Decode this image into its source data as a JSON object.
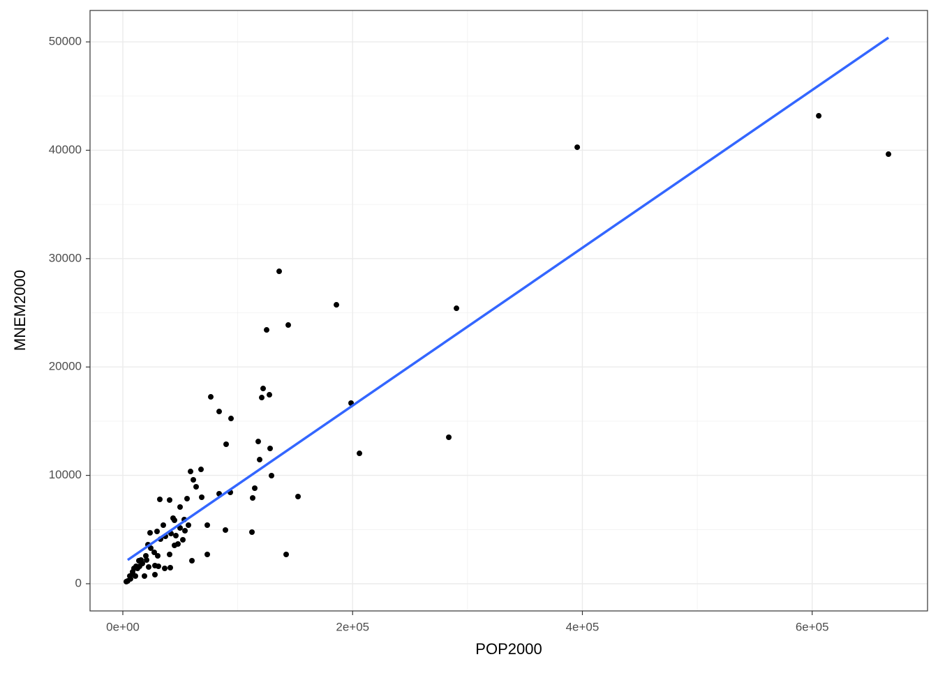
{
  "chart_data": {
    "type": "scatter",
    "xlabel": "POP2000",
    "ylabel": "MNEM2000",
    "xlim": [
      -28550,
      700400
    ],
    "ylim": [
      -2510,
      52900
    ],
    "xticks": [
      {
        "value": 0,
        "label": "0e+00"
      },
      {
        "value": 200000,
        "label": "2e+05"
      },
      {
        "value": 400000,
        "label": "4e+05"
      },
      {
        "value": 600000,
        "label": "6e+05"
      }
    ],
    "yticks": [
      0,
      10000,
      20000,
      30000,
      40000,
      50000
    ],
    "x_minor_grid": [
      100000,
      300000,
      500000
    ],
    "y_minor_grid": [
      5000,
      15000,
      25000,
      35000,
      45000
    ],
    "grid": true,
    "series": [
      {
        "color": "#000000",
        "x": [
          666400,
          605700,
          395500,
          136080,
          185895,
          290385,
          125145,
          143978,
          198653,
          283703,
          205943,
          76545,
          83835,
          94163,
          122108,
          120893,
          127575,
          89910,
          117855,
          128183,
          119070,
          129398,
          68040,
          58928,
          61358,
          63788,
          68648,
          83835,
          93555,
          112995,
          114818,
          152483,
          32198,
          40703,
          49815,
          55890,
          43740,
          53460,
          35235,
          29768,
          57105,
          73508,
          89303,
          112388,
          142155,
          73508,
          60143,
          44955,
          52245,
          54068,
          37058,
          32805,
          23693,
          21870,
          24300,
          27338,
          40703,
          30375,
          20048,
          15795,
          20655,
          13973,
          17010,
          11543,
          14580,
          9720,
          12758,
          22478,
          27945,
          18833,
          8505,
          6075,
          10935,
          6683,
          4253,
          3038,
          27945,
          36450,
          41310,
          30983,
          8505,
          41918,
          46170,
          49815,
          44955,
          47993
        ],
        "values": [
          39640,
          43180,
          40280,
          28829,
          25740,
          25418,
          23423,
          23874,
          16667,
          13514,
          12033,
          17246,
          15894,
          15251,
          18018,
          17181,
          17439,
          12870,
          13127,
          12484,
          11454,
          9974,
          10553,
          10360,
          9588,
          8945,
          7979,
          8301,
          8430,
          7915,
          8816,
          8044,
          7786,
          7722,
          7079,
          7851,
          6049,
          5920,
          5405,
          4826,
          5405,
          5405,
          4955,
          4762,
          2703,
          2703,
          2124,
          3539,
          4054,
          4891,
          4376,
          4118,
          4698,
          3604,
          3282,
          2896,
          2703,
          2574,
          2574,
          2188,
          2188,
          2124,
          1866,
          1609,
          1609,
          1416,
          1416,
          1544,
          1673,
          708,
          901,
          708,
          708,
          450,
          257,
          193,
          837,
          1416,
          1480,
          1609,
          1094,
          4633,
          4440,
          5148,
          5856,
          3668
        ]
      }
    ],
    "trend": {
      "color": "#3366ff",
      "x": [
        4250,
        666400
      ],
      "values": [
        2190,
        50390
      ]
    }
  }
}
